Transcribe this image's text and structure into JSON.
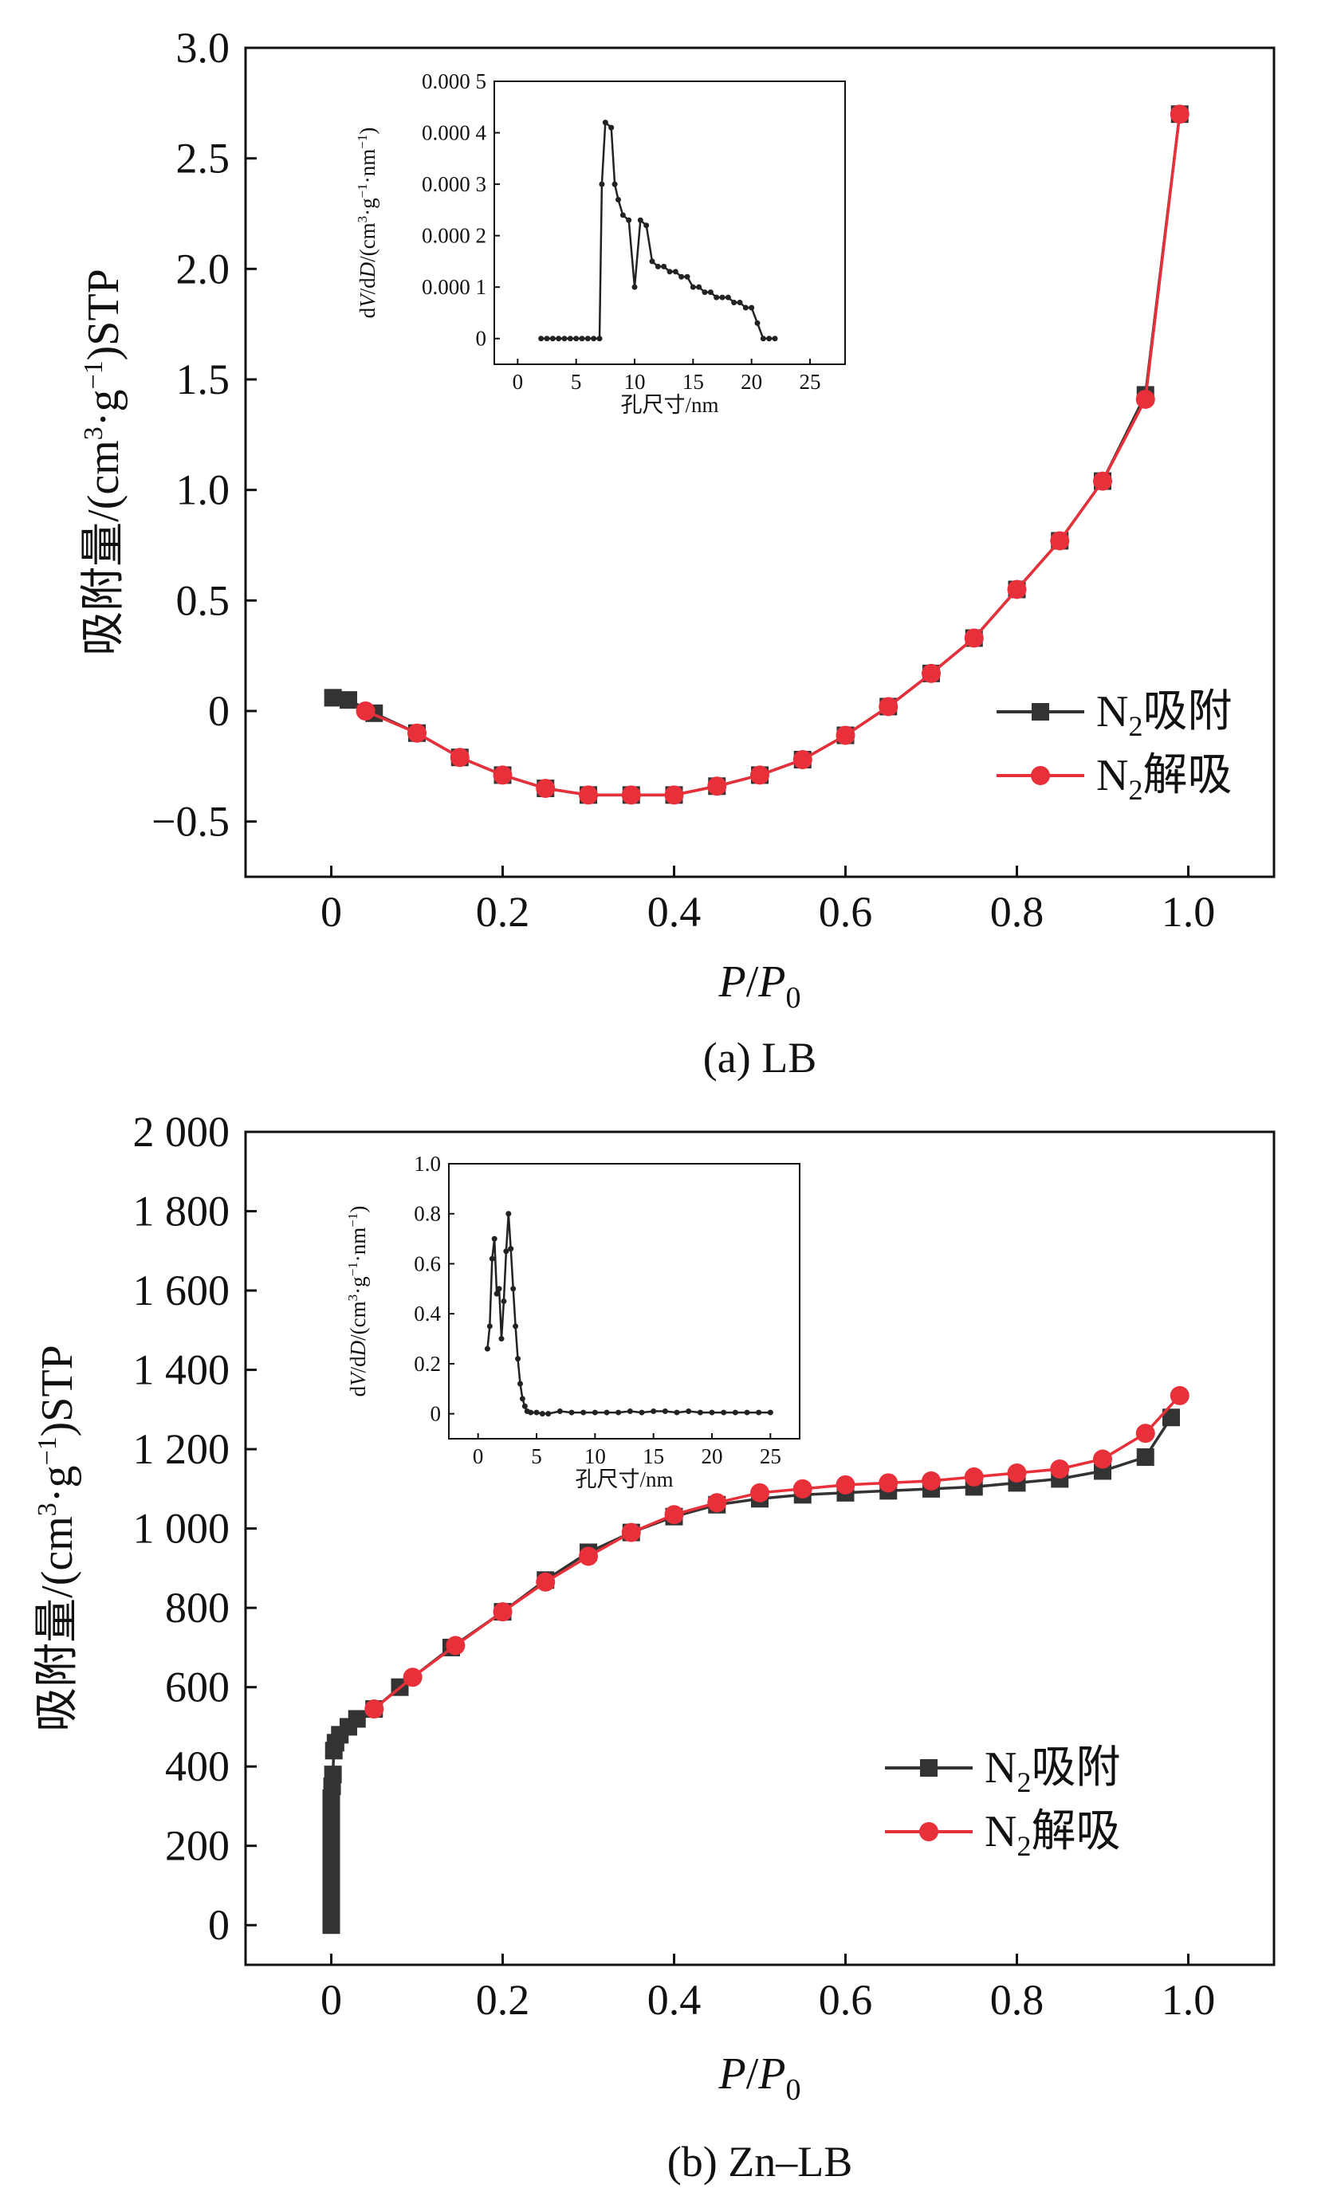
{
  "chart_data": [
    {
      "type": "line",
      "panel_caption": "(a) LB",
      "xlabel": "P/P0",
      "ylabel": "吸附量/(cm3·g−1)STP",
      "xlim": [
        -0.1,
        1.1
      ],
      "ylim": [
        -0.75,
        3.0
      ],
      "xticks": [
        0,
        0.2,
        0.4,
        0.6,
        0.8,
        1.0
      ],
      "xtick_labels": [
        "0",
        "0.2",
        "0.4",
        "0.6",
        "0.8",
        "1.0"
      ],
      "yticks": [
        -0.5,
        0,
        0.5,
        1.0,
        1.5,
        2.0,
        2.5,
        3.0
      ],
      "ytick_labels": [
        "−0.5",
        "0",
        "0.5",
        "1.0",
        "1.5",
        "2.0",
        "2.5",
        "3.0"
      ],
      "legend_position": "right",
      "series": [
        {
          "name": "N2吸附",
          "color": "#333333",
          "marker": "square",
          "x": [
            0.002,
            0.02,
            0.05,
            0.1,
            0.15,
            0.2,
            0.25,
            0.3,
            0.35,
            0.4,
            0.45,
            0.5,
            0.55,
            0.6,
            0.65,
            0.7,
            0.75,
            0.8,
            0.85,
            0.9,
            0.95,
            0.99
          ],
          "y": [
            0.06,
            0.05,
            -0.01,
            -0.1,
            -0.21,
            -0.29,
            -0.35,
            -0.38,
            -0.38,
            -0.38,
            -0.34,
            -0.29,
            -0.22,
            -0.11,
            0.02,
            0.17,
            0.33,
            0.55,
            0.77,
            1.04,
            1.43,
            2.7
          ]
        },
        {
          "name": "N2解吸",
          "color": "#e8303a",
          "marker": "circle",
          "x": [
            0.04,
            0.1,
            0.15,
            0.2,
            0.25,
            0.3,
            0.35,
            0.4,
            0.45,
            0.5,
            0.55,
            0.6,
            0.65,
            0.7,
            0.75,
            0.8,
            0.85,
            0.9,
            0.95,
            0.99
          ],
          "y": [
            0.0,
            -0.1,
            -0.21,
            -0.29,
            -0.35,
            -0.38,
            -0.38,
            -0.38,
            -0.34,
            -0.29,
            -0.22,
            -0.11,
            0.02,
            0.17,
            0.33,
            0.55,
            0.77,
            1.04,
            1.41,
            2.7
          ]
        }
      ],
      "inset": {
        "type": "line",
        "xlabel": "孔尺寸/nm",
        "ylabel": "dV/dD/(cm3·g−1·nm−1)",
        "xlim": [
          -2,
          28
        ],
        "ylim": [
          -5e-05,
          0.0005
        ],
        "xticks": [
          0,
          5,
          10,
          15,
          20,
          25
        ],
        "xtick_labels": [
          "0",
          "5",
          "10",
          "15",
          "20",
          "25"
        ],
        "yticks": [
          0,
          0.0001,
          0.0002,
          0.0003,
          0.0004,
          0.0005
        ],
        "ytick_labels": [
          "0",
          "0.000 1",
          "0.000 2",
          "0.000 3",
          "0.000 4",
          "0.000 5"
        ],
        "series": [
          {
            "color": "#222222",
            "x": [
              2,
              2.5,
              3,
              3.5,
              4,
              4.5,
              5,
              5.5,
              6,
              6.5,
              7,
              7.2,
              7.5,
              8,
              8.3,
              8.6,
              9,
              9.5,
              10,
              10.5,
              11,
              11.5,
              12,
              12.5,
              13,
              13.5,
              14,
              14.5,
              15,
              15.5,
              16,
              16.5,
              17,
              17.5,
              18,
              18.5,
              19,
              19.5,
              20,
              20.5,
              21,
              21.5,
              22
            ],
            "y": [
              0,
              0,
              0,
              0,
              0,
              0,
              0,
              0,
              0,
              0,
              0,
              0.0003,
              0.00042,
              0.00041,
              0.0003,
              0.00027,
              0.00024,
              0.00023,
              0.0001,
              0.00023,
              0.00022,
              0.00015,
              0.00014,
              0.00014,
              0.00013,
              0.00013,
              0.00012,
              0.00012,
              0.0001,
              0.0001,
              9e-05,
              9e-05,
              8e-05,
              8e-05,
              8e-05,
              7e-05,
              7e-05,
              6e-05,
              6e-05,
              3e-05,
              0,
              0,
              0
            ]
          }
        ]
      }
    },
    {
      "type": "line",
      "panel_caption": "(b) Zn–LB",
      "xlabel": "P/P0",
      "ylabel": "吸附量/(cm3·g−1)STP",
      "xlim": [
        -0.1,
        1.1
      ],
      "ylim": [
        -100,
        2000
      ],
      "xticks": [
        0,
        0.2,
        0.4,
        0.6,
        0.8,
        1.0
      ],
      "xtick_labels": [
        "0",
        "0.2",
        "0.4",
        "0.6",
        "0.8",
        "1.0"
      ],
      "yticks": [
        0,
        200,
        400,
        600,
        800,
        1000,
        1200,
        1400,
        1600,
        1800,
        2000
      ],
      "ytick_labels": [
        "0",
        "200",
        "400",
        "600",
        "800",
        "1 000",
        "1 200",
        "1 400",
        "1 600",
        "1 800",
        "2 000"
      ],
      "legend_position": "right",
      "series": [
        {
          "name": "N2吸附",
          "color": "#333333",
          "marker": "square",
          "x": [
            0.0,
            0.0,
            0.0,
            0.0,
            0.0,
            0.0,
            0.0,
            0.0,
            0.0,
            0.001,
            0.002,
            0.003,
            0.005,
            0.01,
            0.02,
            0.03,
            0.05,
            0.08,
            0.14,
            0.2,
            0.25,
            0.3,
            0.35,
            0.4,
            0.45,
            0.5,
            0.55,
            0.6,
            0.65,
            0.7,
            0.75,
            0.8,
            0.85,
            0.9,
            0.95,
            0.98
          ],
          "y": [
            0,
            40,
            80,
            120,
            160,
            200,
            240,
            280,
            320,
            350,
            380,
            440,
            460,
            480,
            500,
            520,
            545,
            600,
            700,
            790,
            870,
            940,
            990,
            1030,
            1060,
            1075,
            1085,
            1090,
            1095,
            1100,
            1105,
            1115,
            1125,
            1145,
            1180,
            1280
          ]
        },
        {
          "name": "N2解吸",
          "color": "#e8303a",
          "marker": "circle",
          "x": [
            0.05,
            0.095,
            0.145,
            0.2,
            0.25,
            0.3,
            0.35,
            0.4,
            0.45,
            0.5,
            0.55,
            0.6,
            0.65,
            0.7,
            0.75,
            0.8,
            0.85,
            0.9,
            0.95,
            0.99
          ],
          "y": [
            545,
            625,
            705,
            790,
            865,
            930,
            990,
            1035,
            1065,
            1090,
            1100,
            1110,
            1115,
            1120,
            1130,
            1140,
            1150,
            1175,
            1240,
            1335
          ]
        }
      ],
      "inset": {
        "type": "line",
        "xlabel": "孔尺寸/nm",
        "ylabel": "dV/dD/(cm3·g−1·nm−1)",
        "xlim": [
          -2.5,
          27.5
        ],
        "ylim": [
          -0.1,
          1.0
        ],
        "xticks": [
          0,
          5,
          10,
          15,
          20,
          25
        ],
        "xtick_labels": [
          "0",
          "5",
          "10",
          "15",
          "20",
          "25"
        ],
        "yticks": [
          0,
          0.2,
          0.4,
          0.6,
          0.8,
          1.0
        ],
        "ytick_labels": [
          "0",
          "0.2",
          "0.4",
          "0.6",
          "0.8",
          "1.0"
        ],
        "series": [
          {
            "color": "#222222",
            "x": [
              0.8,
              1.0,
              1.2,
              1.4,
              1.6,
              1.8,
              2.0,
              2.2,
              2.4,
              2.6,
              2.8,
              3.0,
              3.2,
              3.4,
              3.6,
              3.8,
              4.0,
              4.2,
              4.5,
              5,
              5.5,
              6,
              7,
              8,
              9,
              10,
              11,
              12,
              13,
              14,
              15,
              16,
              17,
              18,
              19,
              20,
              21,
              22,
              23,
              24,
              25
            ],
            "y": [
              0.26,
              0.35,
              0.62,
              0.7,
              0.48,
              0.5,
              0.3,
              0.45,
              0.65,
              0.8,
              0.66,
              0.5,
              0.35,
              0.22,
              0.12,
              0.06,
              0.03,
              0.01,
              0.005,
              0.005,
              0.0,
              0.0,
              0.01,
              0.005,
              0.005,
              0.005,
              0.005,
              0.005,
              0.01,
              0.005,
              0.01,
              0.01,
              0.005,
              0.01,
              0.005,
              0.005,
              0.005,
              0.005,
              0.005,
              0.005,
              0.005
            ]
          }
        ]
      }
    }
  ]
}
